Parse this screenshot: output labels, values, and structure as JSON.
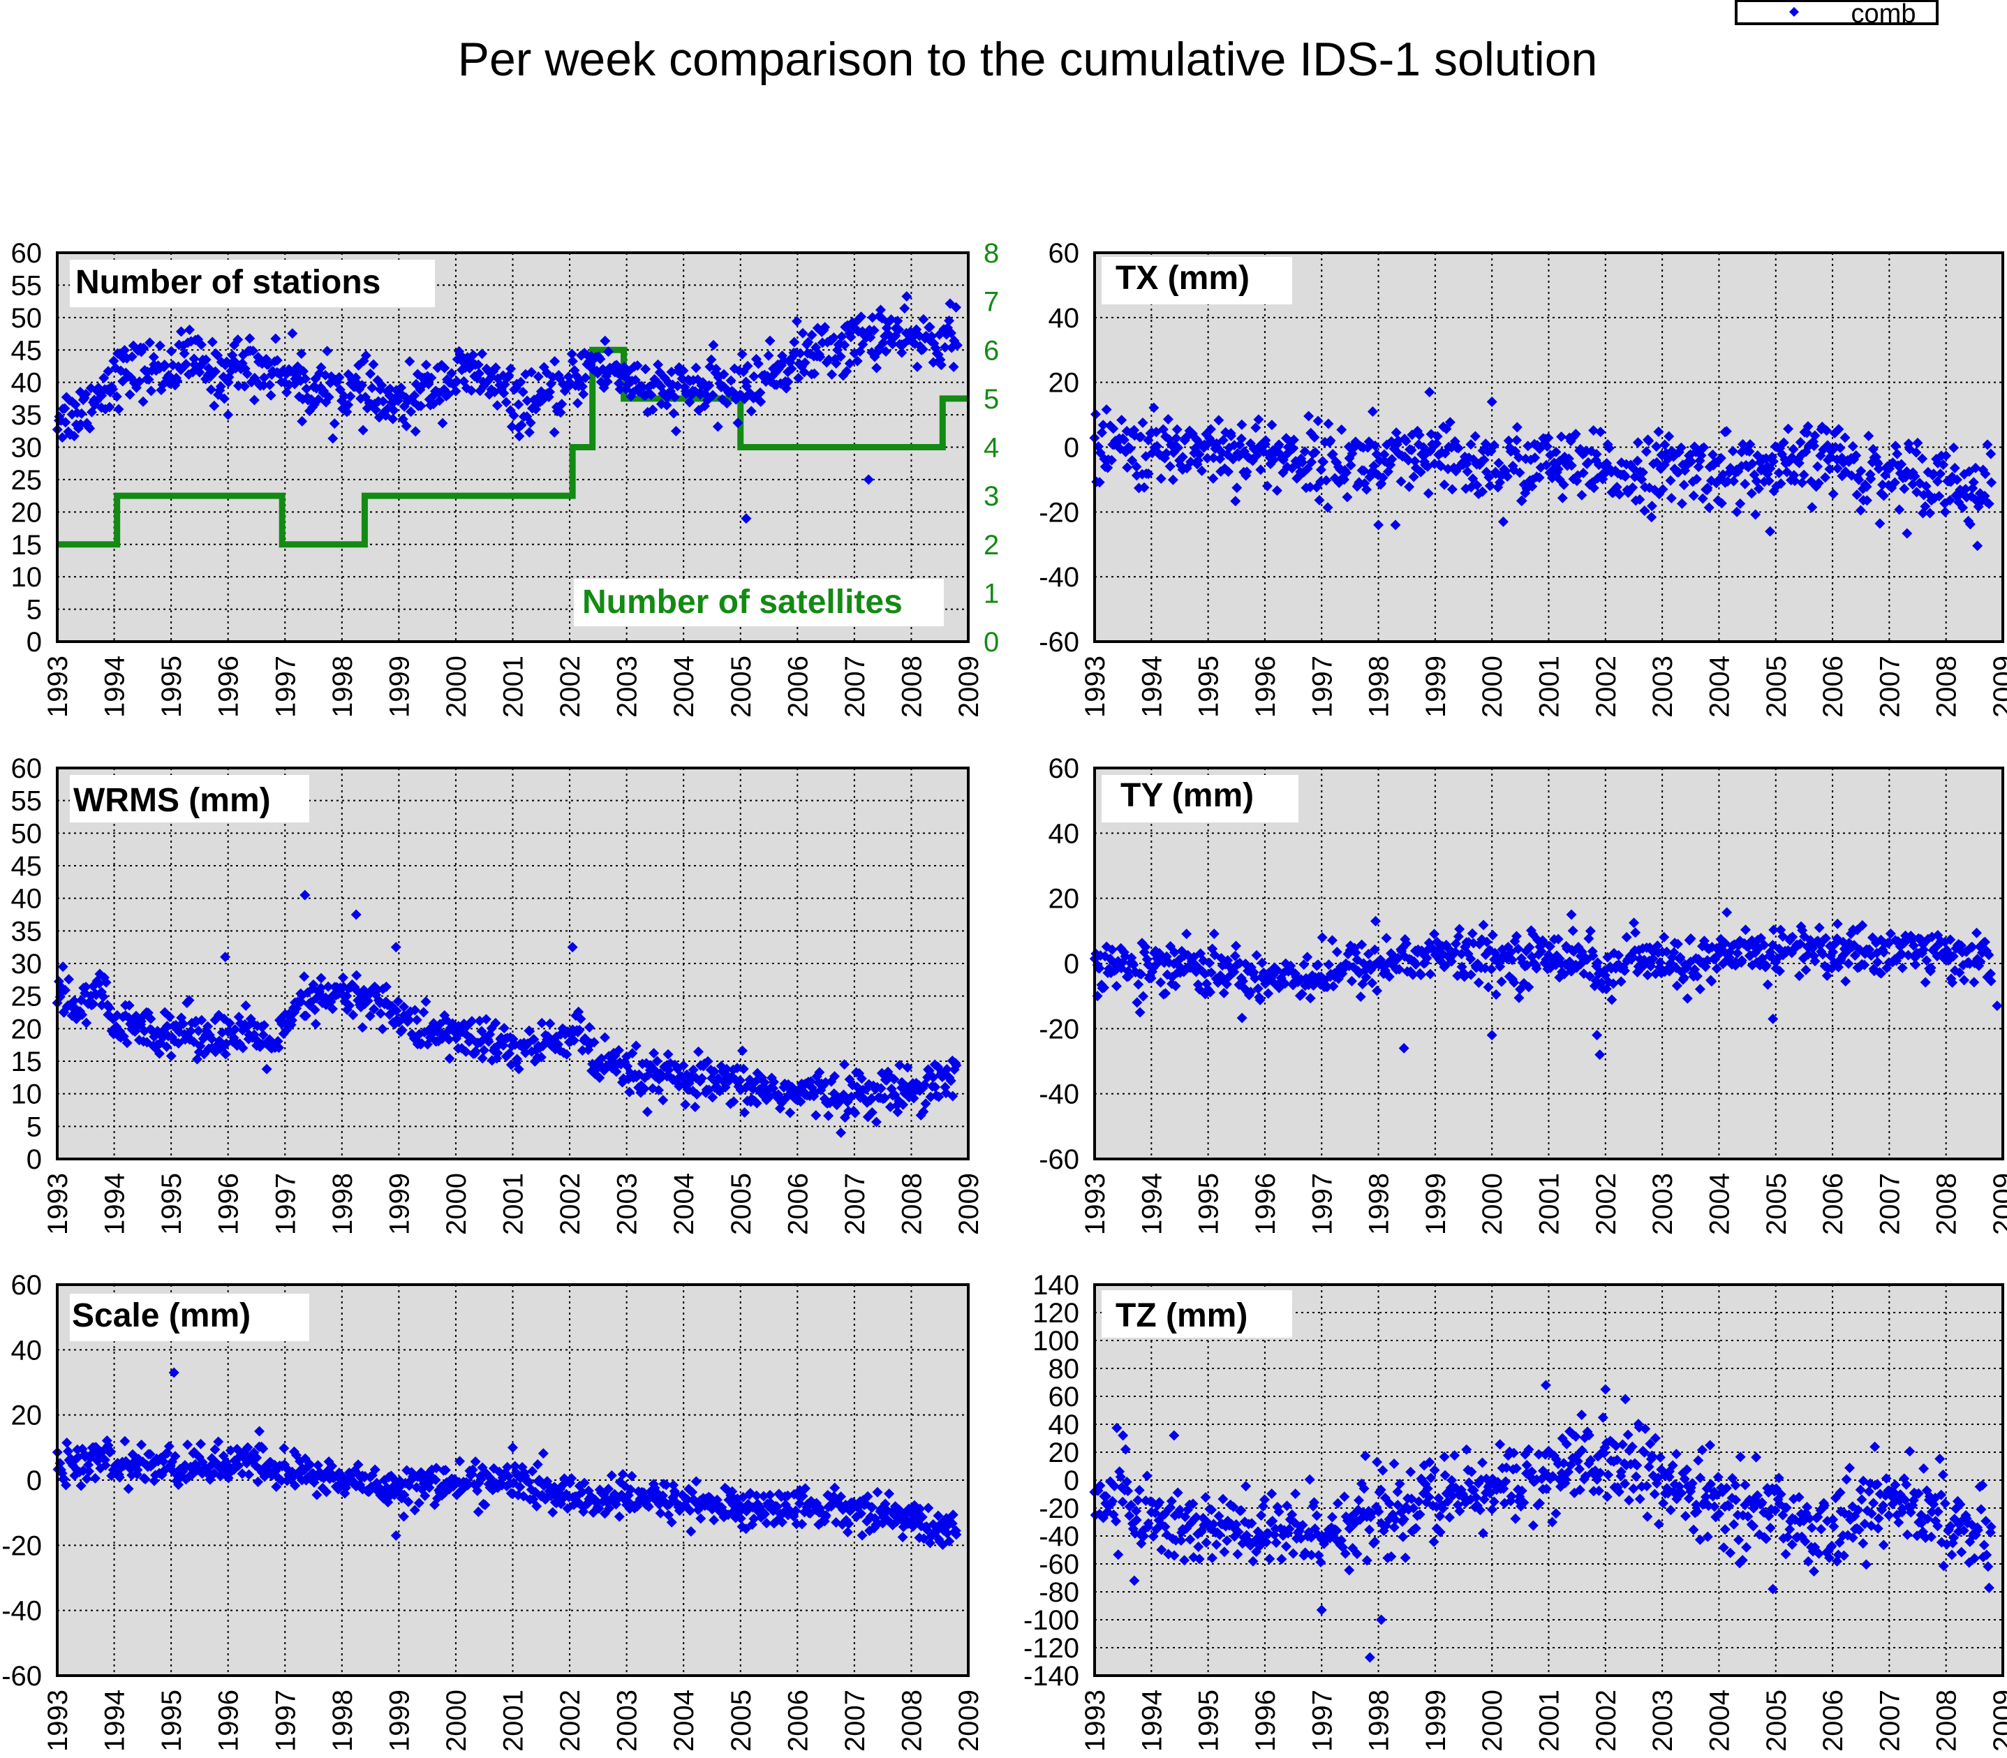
{
  "title": "Per week comparison to the cumulative IDS-1 solution",
  "legend": {
    "label": "comb",
    "marker_color": "#0000ee"
  },
  "colors": {
    "points": "#0000ee",
    "satellites": "#138a13",
    "plot_bg": "#dcdcdc"
  },
  "chart_data": [
    {
      "id": "stations",
      "type": "scatter",
      "title": "Number of stations",
      "xlim": [
        1993,
        2009
      ],
      "xticks": [
        "1993",
        "1994",
        "1995",
        "1996",
        "1997",
        "1998",
        "1999",
        "2000",
        "2001",
        "2002",
        "2003",
        "2004",
        "2005",
        "2006",
        "2007",
        "2008",
        "2009"
      ],
      "ylim": [
        0,
        60
      ],
      "yticks": [
        "0",
        "5",
        "10",
        "15",
        "20",
        "25",
        "30",
        "35",
        "40",
        "45",
        "50",
        "55",
        "60"
      ],
      "grid": true,
      "trend": [
        [
          1993.0,
          35
        ],
        [
          1993.3,
          35
        ],
        [
          1993.6,
          37
        ],
        [
          1994.0,
          41
        ],
        [
          1994.5,
          42
        ],
        [
          1995.0,
          42
        ],
        [
          1995.3,
          44
        ],
        [
          1995.8,
          41
        ],
        [
          1996.2,
          43
        ],
        [
          1996.6,
          42
        ],
        [
          1997.0,
          42
        ],
        [
          1997.5,
          39
        ],
        [
          1998.0,
          39
        ],
        [
          1998.5,
          38
        ],
        [
          1999.0,
          36
        ],
        [
          1999.5,
          39
        ],
        [
          2000.0,
          41
        ],
        [
          2000.5,
          41
        ],
        [
          2001.0,
          37
        ],
        [
          2001.5,
          37
        ],
        [
          2002.0,
          39
        ],
        [
          2002.3,
          43
        ],
        [
          2002.7,
          42
        ],
        [
          2003.0,
          41
        ],
        [
          2003.5,
          38
        ],
        [
          2004.0,
          39
        ],
        [
          2004.5,
          39
        ],
        [
          2005.0,
          39
        ],
        [
          2005.5,
          41
        ],
        [
          2006.0,
          44
        ],
        [
          2006.5,
          45
        ],
        [
          2007.0,
          46
        ],
        [
          2007.5,
          48
        ],
        [
          2008.0,
          46
        ],
        [
          2008.5,
          47
        ],
        [
          2008.8,
          47
        ]
      ],
      "noise": 2.2,
      "outliers": [
        [
          2005.1,
          19
        ],
        [
          2007.25,
          25
        ],
        [
          1996.0,
          35
        ],
        [
          1997.3,
          34
        ],
        [
          2001.1,
          33
        ]
      ],
      "secondary": {
        "name": "Number of satellites",
        "ylim": [
          0,
          8
        ],
        "yticks": [
          "0",
          "1",
          "2",
          "3",
          "4",
          "5",
          "6",
          "7",
          "8"
        ],
        "steps": [
          [
            1993.0,
            2
          ],
          [
            1994.05,
            3
          ],
          [
            1996.95,
            2
          ],
          [
            1998.4,
            3
          ],
          [
            2002.05,
            4
          ],
          [
            2002.4,
            6
          ],
          [
            2002.95,
            5
          ],
          [
            2005.0,
            4
          ],
          [
            2008.55,
            5
          ],
          [
            2009.3,
            5
          ]
        ]
      }
    },
    {
      "id": "tx",
      "type": "scatter",
      "title": "TX (mm)",
      "xlim": [
        1993,
        2009
      ],
      "xticks": [
        "1993",
        "1994",
        "1995",
        "1996",
        "1997",
        "1998",
        "1999",
        "2000",
        "2001",
        "2002",
        "2003",
        "2004",
        "2005",
        "2006",
        "2007",
        "2008",
        "2009"
      ],
      "ylim": [
        -60,
        60
      ],
      "yticks": [
        "-60",
        "-40",
        "-20",
        "0",
        "20",
        "40",
        "60"
      ],
      "grid": true,
      "trend": [
        [
          1993.0,
          -1
        ],
        [
          1993.5,
          0
        ],
        [
          1994.0,
          -2
        ],
        [
          1994.5,
          0
        ],
        [
          1995.0,
          0
        ],
        [
          1996.0,
          -2
        ],
        [
          1997.0,
          -4
        ],
        [
          1998.0,
          -6
        ],
        [
          1999.0,
          -4
        ],
        [
          2000.0,
          -6
        ],
        [
          2001.0,
          -5
        ],
        [
          2002.0,
          -8
        ],
        [
          2003.0,
          -7
        ],
        [
          2004.0,
          -7
        ],
        [
          2005.0,
          -8
        ],
        [
          2006.0,
          -2
        ],
        [
          2006.5,
          -8
        ],
        [
          2007.0,
          -8
        ],
        [
          2008.0,
          -9
        ],
        [
          2008.5,
          -15
        ],
        [
          2008.8,
          -11
        ]
      ],
      "noise": 5.5,
      "outliers": [
        [
          2004.9,
          -26
        ],
        [
          1998.0,
          -24
        ],
        [
          1998.3,
          -24
        ],
        [
          1998.9,
          17
        ],
        [
          2000.0,
          14
        ],
        [
          1997.9,
          11
        ],
        [
          2000.2,
          -23
        ]
      ]
    },
    {
      "id": "wrms",
      "type": "scatter",
      "title": "WRMS (mm)",
      "xlim": [
        1993,
        2009
      ],
      "xticks": [
        "1993",
        "1994",
        "1995",
        "1996",
        "1997",
        "1998",
        "1999",
        "2000",
        "2001",
        "2002",
        "2003",
        "2004",
        "2005",
        "2006",
        "2007",
        "2008",
        "2009"
      ],
      "ylim": [
        0,
        60
      ],
      "yticks": [
        "0",
        "5",
        "10",
        "15",
        "20",
        "25",
        "30",
        "35",
        "40",
        "45",
        "50",
        "55",
        "60"
      ],
      "grid": true,
      "trend": [
        [
          1993.0,
          25
        ],
        [
          1993.5,
          23
        ],
        [
          1993.8,
          26
        ],
        [
          1994.0,
          20
        ],
        [
          1995.0,
          20
        ],
        [
          1996.0,
          19
        ],
        [
          1996.9,
          18
        ],
        [
          1997.3,
          24
        ],
        [
          1998.0,
          25
        ],
        [
          1998.8,
          24
        ],
        [
          1999.2,
          20
        ],
        [
          2000.0,
          19
        ],
        [
          2001.0,
          17
        ],
        [
          2001.5,
          17
        ],
        [
          2001.9,
          19
        ],
        [
          2002.2,
          20
        ],
        [
          2002.4,
          15
        ],
        [
          2003.0,
          13
        ],
        [
          2004.0,
          12
        ],
        [
          2005.0,
          11
        ],
        [
          2006.0,
          10
        ],
        [
          2007.0,
          10
        ],
        [
          2007.5,
          10
        ],
        [
          2008.0,
          11
        ],
        [
          2008.8,
          13
        ]
      ],
      "noise": 1.8,
      "outliers": [
        [
          1997.35,
          40.5
        ],
        [
          1998.25,
          37.5
        ],
        [
          1998.95,
          32.5
        ],
        [
          2002.05,
          32.5
        ],
        [
          1995.95,
          31
        ],
        [
          1993.1,
          29.5
        ]
      ]
    },
    {
      "id": "ty",
      "type": "scatter",
      "title": "TY (mm)",
      "xlim": [
        1993,
        2009
      ],
      "xticks": [
        "1993",
        "1994",
        "1995",
        "1996",
        "1997",
        "1998",
        "1999",
        "2000",
        "2001",
        "2002",
        "2003",
        "2004",
        "2005",
        "2006",
        "2007",
        "2008",
        "2009"
      ],
      "ylim": [
        -60,
        60
      ],
      "yticks": [
        "-60",
        "-40",
        "-20",
        "0",
        "20",
        "40",
        "60"
      ],
      "grid": true,
      "trend": [
        [
          1993.0,
          0
        ],
        [
          1993.5,
          0
        ],
        [
          1993.8,
          -5
        ],
        [
          1994.0,
          2
        ],
        [
          1995.0,
          -2
        ],
        [
          1996.0,
          -4
        ],
        [
          1997.0,
          -3
        ],
        [
          1998.0,
          0
        ],
        [
          1999.0,
          3
        ],
        [
          2000.0,
          1
        ],
        [
          2001.0,
          2
        ],
        [
          2001.5,
          4
        ],
        [
          2002.0,
          -4
        ],
        [
          2002.5,
          2
        ],
        [
          2003.0,
          0
        ],
        [
          2004.0,
          1
        ],
        [
          2005.0,
          4
        ],
        [
          2005.5,
          5
        ],
        [
          2006.0,
          3
        ],
        [
          2007.0,
          4
        ],
        [
          2007.5,
          4
        ],
        [
          2008.0,
          2
        ],
        [
          2008.5,
          3
        ],
        [
          2008.8,
          -1
        ]
      ],
      "noise": 4.0,
      "outliers": [
        [
          1998.45,
          -26
        ],
        [
          2001.9,
          -28
        ],
        [
          2001.85,
          -22
        ],
        [
          2004.95,
          -17
        ],
        [
          2000.0,
          -22
        ],
        [
          1993.8,
          -15
        ],
        [
          1993.05,
          -10
        ],
        [
          2008.9,
          -13
        ],
        [
          1997.95,
          13
        ],
        [
          2001.4,
          15
        ]
      ]
    },
    {
      "id": "scale",
      "type": "scatter",
      "title": "Scale (mm)",
      "xlim": [
        1993,
        2009
      ],
      "xticks": [
        "1993",
        "1994",
        "1995",
        "1996",
        "1997",
        "1998",
        "1999",
        "2000",
        "2001",
        "2002",
        "2003",
        "2004",
        "2005",
        "2006",
        "2007",
        "2008",
        "2009"
      ],
      "ylim": [
        -60,
        60
      ],
      "yticks": [
        "-60",
        "-40",
        "-20",
        "0",
        "20",
        "40",
        "60"
      ],
      "grid": true,
      "trend": [
        [
          1993.0,
          3
        ],
        [
          1993.5,
          6
        ],
        [
          1994.0,
          5
        ],
        [
          1995.0,
          4
        ],
        [
          1996.0,
          5
        ],
        [
          1996.5,
          5
        ],
        [
          1997.0,
          3
        ],
        [
          1998.0,
          0
        ],
        [
          1999.0,
          -2
        ],
        [
          2000.0,
          -1
        ],
        [
          2001.0,
          0
        ],
        [
          2001.5,
          -3
        ],
        [
          2002.0,
          -5
        ],
        [
          2003.0,
          -6
        ],
        [
          2004.0,
          -6
        ],
        [
          2005.0,
          -9
        ],
        [
          2006.0,
          -8
        ],
        [
          2007.0,
          -9
        ],
        [
          2007.5,
          -10
        ],
        [
          2008.0,
          -12
        ],
        [
          2008.3,
          -16
        ],
        [
          2008.8,
          -13
        ]
      ],
      "noise": 3.0,
      "outliers": [
        [
          1995.05,
          33
        ],
        [
          1998.95,
          -17
        ],
        [
          1996.55,
          15
        ],
        [
          2001.0,
          10
        ]
      ]
    },
    {
      "id": "tz",
      "type": "scatter",
      "title": "TZ (mm)",
      "xlim": [
        1993,
        2009
      ],
      "xticks": [
        "1993",
        "1994",
        "1995",
        "1996",
        "1997",
        "1998",
        "1999",
        "2000",
        "2001",
        "2002",
        "2003",
        "2004",
        "2005",
        "2006",
        "2007",
        "2008",
        "2009"
      ],
      "ylim": [
        -140,
        140
      ],
      "yticks": [
        "-140",
        "-120",
        "-100",
        "-80",
        "-60",
        "-40",
        "-20",
        "0",
        "20",
        "40",
        "60",
        "80",
        "100",
        "120",
        "140"
      ],
      "grid": true,
      "trend": [
        [
          1993.0,
          -20
        ],
        [
          1993.5,
          -10
        ],
        [
          1994.0,
          -30
        ],
        [
          1995.0,
          -35
        ],
        [
          1996.0,
          -40
        ],
        [
          1997.0,
          -35
        ],
        [
          1998.0,
          -25
        ],
        [
          1999.0,
          -15
        ],
        [
          2000.0,
          -5
        ],
        [
          2001.0,
          5
        ],
        [
          2002.0,
          10
        ],
        [
          2002.5,
          15
        ],
        [
          2003.0,
          -5
        ],
        [
          2004.0,
          -15
        ],
        [
          2005.0,
          -25
        ],
        [
          2006.0,
          -35
        ],
        [
          2006.5,
          -20
        ],
        [
          2007.0,
          -15
        ],
        [
          2008.0,
          -25
        ],
        [
          2008.5,
          -40
        ],
        [
          2008.8,
          -50
        ]
      ],
      "noise": 15.0,
      "outliers": [
        [
          1997.85,
          -127
        ],
        [
          1998.05,
          -100
        ],
        [
          1997.0,
          -93
        ],
        [
          2000.95,
          68
        ],
        [
          2002.0,
          65
        ],
        [
          2002.35,
          58
        ],
        [
          2004.95,
          -78
        ],
        [
          1993.5,
          32
        ],
        [
          1994.4,
          32
        ],
        [
          1993.7,
          -72
        ]
      ]
    }
  ]
}
